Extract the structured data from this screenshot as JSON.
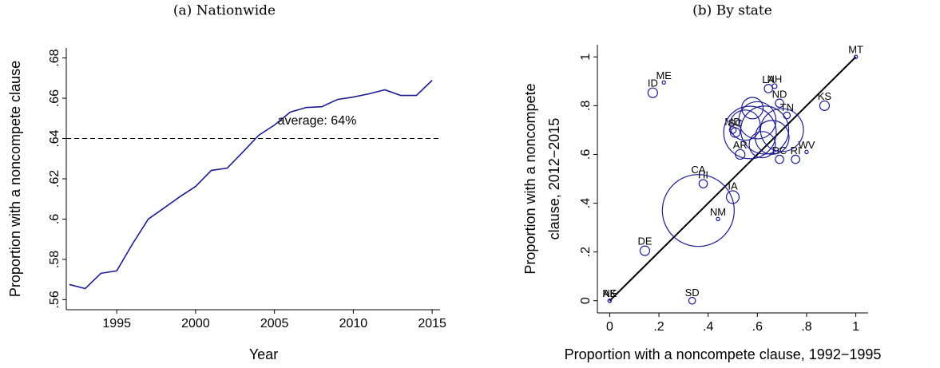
{
  "chart_data": [
    {
      "type": "line",
      "title": "(a) Nationwide",
      "xlabel": "Year",
      "ylabel": "Proportion with a noncompete clause",
      "x": [
        1992,
        1993,
        1994,
        1995,
        1996,
        1997,
        1998,
        1999,
        2000,
        2001,
        2002,
        2003,
        2004,
        2005,
        2006,
        2007,
        2008,
        2009,
        2010,
        2011,
        2012,
        2013,
        2014,
        2015
      ],
      "series": [
        {
          "name": "Nationwide",
          "color": "#1c1c8f",
          "values": [
            0.5675,
            0.5655,
            0.5731,
            0.5743,
            0.5877,
            0.6,
            0.6055,
            0.6111,
            0.6162,
            0.6242,
            0.6253,
            0.6333,
            0.6416,
            0.6467,
            0.6531,
            0.6554,
            0.6558,
            0.6594,
            0.6606,
            0.6622,
            0.6642,
            0.6614,
            0.6614,
            0.6689
          ]
        }
      ],
      "xlim": [
        1991.8,
        2015.5
      ],
      "xticks": [
        1995,
        2000,
        2005,
        2010,
        2015
      ],
      "ylim": [
        0.555,
        0.685
      ],
      "yticks": [
        {
          "value": 0.56,
          "label": ".56"
        },
        {
          "value": 0.58,
          "label": ".58"
        },
        {
          "value": 0.6,
          "label": ".6"
        },
        {
          "value": 0.62,
          "label": ".62"
        },
        {
          "value": 0.64,
          "label": ".64"
        },
        {
          "value": 0.66,
          "label": ".66"
        },
        {
          "value": 0.68,
          "label": ".68"
        }
      ],
      "reference_line": {
        "value": 0.64,
        "label": "average: 64%"
      }
    },
    {
      "type": "scatter",
      "title": "(b) By state",
      "xlabel": "Proportion with a noncompete clause, 1992−1995",
      "ylabel": [
        "Proportion with a noncompete",
        "clause, 2012−2015"
      ],
      "color": "#1c1c8f",
      "diagonal": true,
      "labels": [
        "MT",
        "ME",
        "ID",
        "NH",
        "LA",
        "ND",
        "TN",
        "KS",
        "WV",
        "RI",
        "DC",
        "MD",
        "SC",
        "AR",
        "HI",
        "IA",
        "CA",
        "NM",
        "DE",
        "SD",
        "NE",
        "AK",
        null,
        null,
        null,
        null,
        null,
        null,
        null,
        null
      ],
      "x": [
        1,
        0.22,
        0.175,
        0.67,
        0.645,
        0.69,
        0.72,
        0.873,
        0.8,
        0.755,
        0.69,
        0.5,
        0.51,
        0.53,
        0.38,
        0.5,
        0.36,
        0.44,
        0.143,
        0.335,
        0,
        0,
        0.57,
        0.63,
        0.6,
        0.66,
        0.55,
        0.62,
        0.7,
        0.58
      ],
      "values": [
        1,
        0.895,
        0.853,
        0.88,
        0.87,
        0.81,
        0.76,
        0.8,
        0.61,
        0.58,
        0.58,
        0.7,
        0.69,
        0.6,
        0.48,
        0.425,
        0.37,
        0.335,
        0.205,
        0,
        0,
        0,
        0.69,
        0.7,
        0.74,
        0.67,
        0.72,
        0.64,
        0.7,
        0.79
      ],
      "sizes": [
        0.5,
        0.5,
        4,
        1,
        3,
        3,
        2,
        4,
        0.5,
        3,
        3,
        2,
        4,
        4,
        3,
        7,
        225,
        0.5,
        4,
        2,
        0.5,
        0.5,
        120,
        100,
        60,
        50,
        40,
        30,
        80,
        20
      ],
      "xlim": [
        -0.05,
        1.05
      ],
      "ylim": [
        -0.05,
        1.05
      ],
      "xticks": [
        0,
        {
          "value": 0.2,
          "label": ".2"
        },
        {
          "value": 0.4,
          "label": ".4"
        },
        {
          "value": 0.6,
          "label": ".6"
        },
        {
          "value": 0.8,
          "label": ".8"
        },
        1
      ],
      "yticks": [
        0,
        {
          "value": 0.2,
          "label": ".2"
        },
        {
          "value": 0.4,
          "label": ".4"
        },
        {
          "value": 0.6,
          "label": ".6"
        },
        {
          "value": 0.8,
          "label": ".8"
        },
        1
      ]
    }
  ]
}
